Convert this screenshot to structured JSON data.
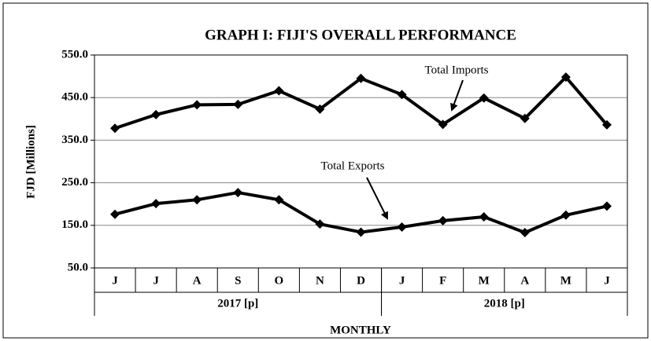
{
  "chart_data": {
    "type": "line",
    "title": "GRAPH I: FIJI'S OVERALL PERFORMANCE",
    "y_label": "FJD [Millions]",
    "x_label": "MONTHLY",
    "categories": [
      "J",
      "J",
      "A",
      "S",
      "O",
      "N",
      "D",
      "J",
      "F",
      "M",
      "A",
      "M",
      "J"
    ],
    "groups": [
      {
        "name": "2017 [p]",
        "count": 7
      },
      {
        "name": "2018 [p]",
        "count": 6
      }
    ],
    "series": [
      {
        "name": "Total Imports",
        "color": "#000000",
        "values": [
          378,
          410,
          433,
          434,
          466,
          423,
          495,
          457,
          387,
          449,
          401,
          498,
          386
        ]
      },
      {
        "name": "Total Exports",
        "color": "#000000",
        "values": [
          176,
          201,
          210,
          227,
          210,
          153,
          134,
          146,
          161,
          170,
          133,
          174,
          195
        ]
      }
    ],
    "ylim": [
      50,
      550
    ],
    "yticks": [
      {
        "value": 50,
        "label": "50.0"
      },
      {
        "value": 150,
        "label": "150.0"
      },
      {
        "value": 250,
        "label": "250.0"
      },
      {
        "value": 350,
        "label": "350.0"
      },
      {
        "value": 450,
        "label": "450.0"
      },
      {
        "value": 550,
        "label": "550.0"
      }
    ],
    "grid": true
  }
}
